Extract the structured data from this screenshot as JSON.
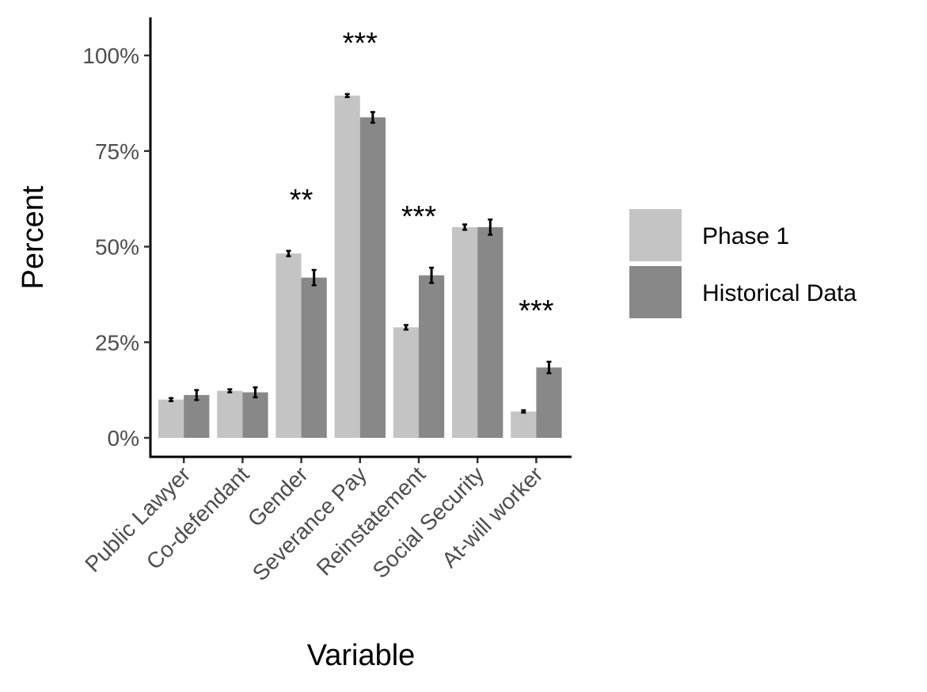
{
  "chart_data": {
    "type": "bar",
    "title": "",
    "xlabel": "Variable",
    "ylabel": "Percent",
    "ylim": [
      0,
      100
    ],
    "yticks": [
      0,
      25,
      50,
      75,
      100
    ],
    "ytick_labels": [
      "0%",
      "25%",
      "50%",
      "75%",
      "100%"
    ],
    "categories": [
      "Public Lawyer",
      "Co-defendant",
      "Gender",
      "Severance Pay",
      "Reinstatement",
      "Social Security",
      "At-will worker"
    ],
    "series": [
      {
        "name": "Phase 1",
        "color": "#c4c4c4",
        "values": [
          10,
          12.3,
          48.2,
          89.5,
          28.9,
          55.1,
          6.9
        ],
        "errors": [
          0.4,
          0.4,
          0.7,
          0.4,
          0.6,
          0.7,
          0.3
        ]
      },
      {
        "name": "Historical Data",
        "color": "#888888",
        "values": [
          11.2,
          11.9,
          41.9,
          83.8,
          42.5,
          55.1,
          18.4
        ],
        "errors": [
          1.3,
          1.3,
          2.0,
          1.4,
          2.0,
          2.0,
          1.5
        ]
      }
    ],
    "significance": [
      "",
      "",
      "**",
      "***",
      "***",
      "",
      "***"
    ],
    "legend": {
      "placement": "right",
      "entries": [
        "Phase 1",
        "Historical Data"
      ]
    },
    "grid": false
  }
}
